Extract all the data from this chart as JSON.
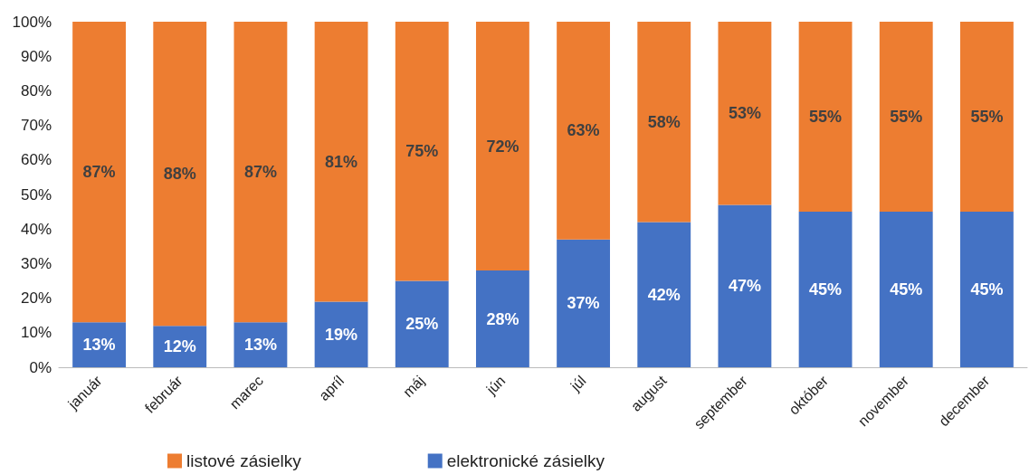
{
  "chart_data": {
    "type": "bar",
    "stacked": true,
    "data_labels": true,
    "legend": "bottom",
    "grid": false,
    "categories": [
      "január",
      "február",
      "marec",
      "apríl",
      "máj",
      "jún",
      "júl",
      "august",
      "september",
      "október",
      "november",
      "december"
    ],
    "series": [
      {
        "name": "elektronické zásielky",
        "color": "#4472c4",
        "values": [
          13,
          12,
          13,
          19,
          25,
          28,
          37,
          42,
          47,
          45,
          45,
          45
        ],
        "value_labels": [
          "13%",
          "12%",
          "13%",
          "19%",
          "25%",
          "28%",
          "37%",
          "42%",
          "47%",
          "45%",
          "45%",
          "45%"
        ]
      },
      {
        "name": "listové zásielky",
        "color": "#ed7d31",
        "values": [
          87,
          88,
          87,
          81,
          75,
          72,
          63,
          58,
          53,
          55,
          55,
          55
        ],
        "value_labels": [
          "87%",
          "88%",
          "87%",
          "81%",
          "75%",
          "72%",
          "63%",
          "58%",
          "53%",
          "55%",
          "55%",
          "55%"
        ]
      }
    ],
    "ylim": [
      0,
      100
    ],
    "yticks": [
      {
        "value": 0,
        "label": "0%"
      },
      {
        "value": 10,
        "label": "10%"
      },
      {
        "value": 20,
        "label": "20%"
      },
      {
        "value": 30,
        "label": "30%"
      },
      {
        "value": 40,
        "label": "40%"
      },
      {
        "value": 50,
        "label": "50%"
      },
      {
        "value": 60,
        "label": "60%"
      },
      {
        "value": 70,
        "label": "70%"
      },
      {
        "value": 80,
        "label": "80%"
      },
      {
        "value": 90,
        "label": "90%"
      },
      {
        "value": 100,
        "label": "100%"
      }
    ]
  }
}
